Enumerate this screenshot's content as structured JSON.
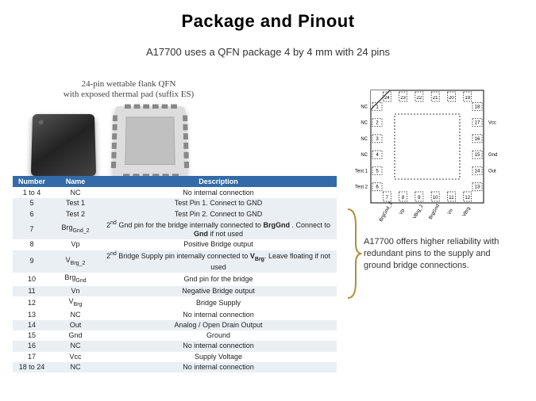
{
  "title": "Package and Pinout",
  "subtitle": "A17700 uses a QFN package 4 by 4 mm with 24 pins",
  "pkg_label_line1": "24-pin wettable flank QFN",
  "pkg_label_line2": "with exposed thermal pad (suffix ES)",
  "table_headers": {
    "num": "Number",
    "name": "Name",
    "desc": "Description"
  },
  "pins": [
    {
      "num": "1 to 4",
      "name": "NC",
      "desc": "No internal connection"
    },
    {
      "num": "5",
      "name": "Test 1",
      "desc": "Test Pin 1. Connect to GND"
    },
    {
      "num": "6",
      "name": "Test 2",
      "desc": "Test Pin 2.  Connect to GND"
    },
    {
      "num": "7",
      "name": "Brg<sub>Gnd_2</sub>",
      "desc": "2<sup>nd</sup> Gnd pin for the bridge internally connected to <b>BrgGnd</b> . Connect to <b>Gnd</b>  if not used"
    },
    {
      "num": "8",
      "name": "Vp",
      "desc": "Positive Bridge output"
    },
    {
      "num": "9",
      "name": "V<sub>Brg_2</sub>",
      "desc": "2<sup>nd</sup> Bridge Supply pin internally connected to <b>V<sub>Brg</sub></b>. Leave floating if not used"
    },
    {
      "num": "10",
      "name": "Brg<sub>Gnd</sub>",
      "desc": "Gnd pin for the bridge"
    },
    {
      "num": "11",
      "name": "Vn",
      "desc": "Negative Bridge output"
    },
    {
      "num": "12",
      "name": "V<sub>Brg</sub>",
      "desc": "Bridge Supply"
    },
    {
      "num": "13",
      "name": "NC",
      "desc": "No internal connection"
    },
    {
      "num": "14",
      "name": "Out",
      "desc": "Analog / Open Drain Output"
    },
    {
      "num": "15",
      "name": "Gnd",
      "desc": "Ground"
    },
    {
      "num": "16",
      "name": "NC",
      "desc": "No internal connection"
    },
    {
      "num": "17",
      "name": "Vcc",
      "desc": "Supply Voltage"
    },
    {
      "num": "18 to 24",
      "name": "NC",
      "desc": "No internal connection"
    }
  ],
  "alt_rows": [
    1,
    2,
    3,
    5,
    7,
    10,
    12,
    14
  ],
  "callout": "A17700 offers higher reliability with redundant pins to the supply and ground bridge connections.",
  "diagram": {
    "right_labels": [
      "Vcc",
      "Gnd",
      "Out"
    ],
    "right_nums": [
      "18",
      "17",
      "16",
      "15",
      "14",
      "13"
    ],
    "left_labels": [
      "NC",
      "NC",
      "NC",
      "NC",
      "Test 1",
      "Test 2"
    ],
    "left_nums": [
      "1",
      "2",
      "3",
      "4",
      "5",
      "6"
    ],
    "bottom_labels": [
      "BrgGnd_2",
      "Vp",
      "VBrg_2",
      "BrgGnd",
      "Vn",
      "VBrg"
    ],
    "bottom_nums": [
      "7",
      "8",
      "9",
      "10",
      "11",
      "12"
    ],
    "top_nums": [
      "24",
      "23",
      "22",
      "21",
      "20",
      "19"
    ]
  },
  "colors": {
    "header_bg": "#326ba8",
    "alt_row_bg": "#eaeff3",
    "callout_brace": "#b08e3a"
  }
}
